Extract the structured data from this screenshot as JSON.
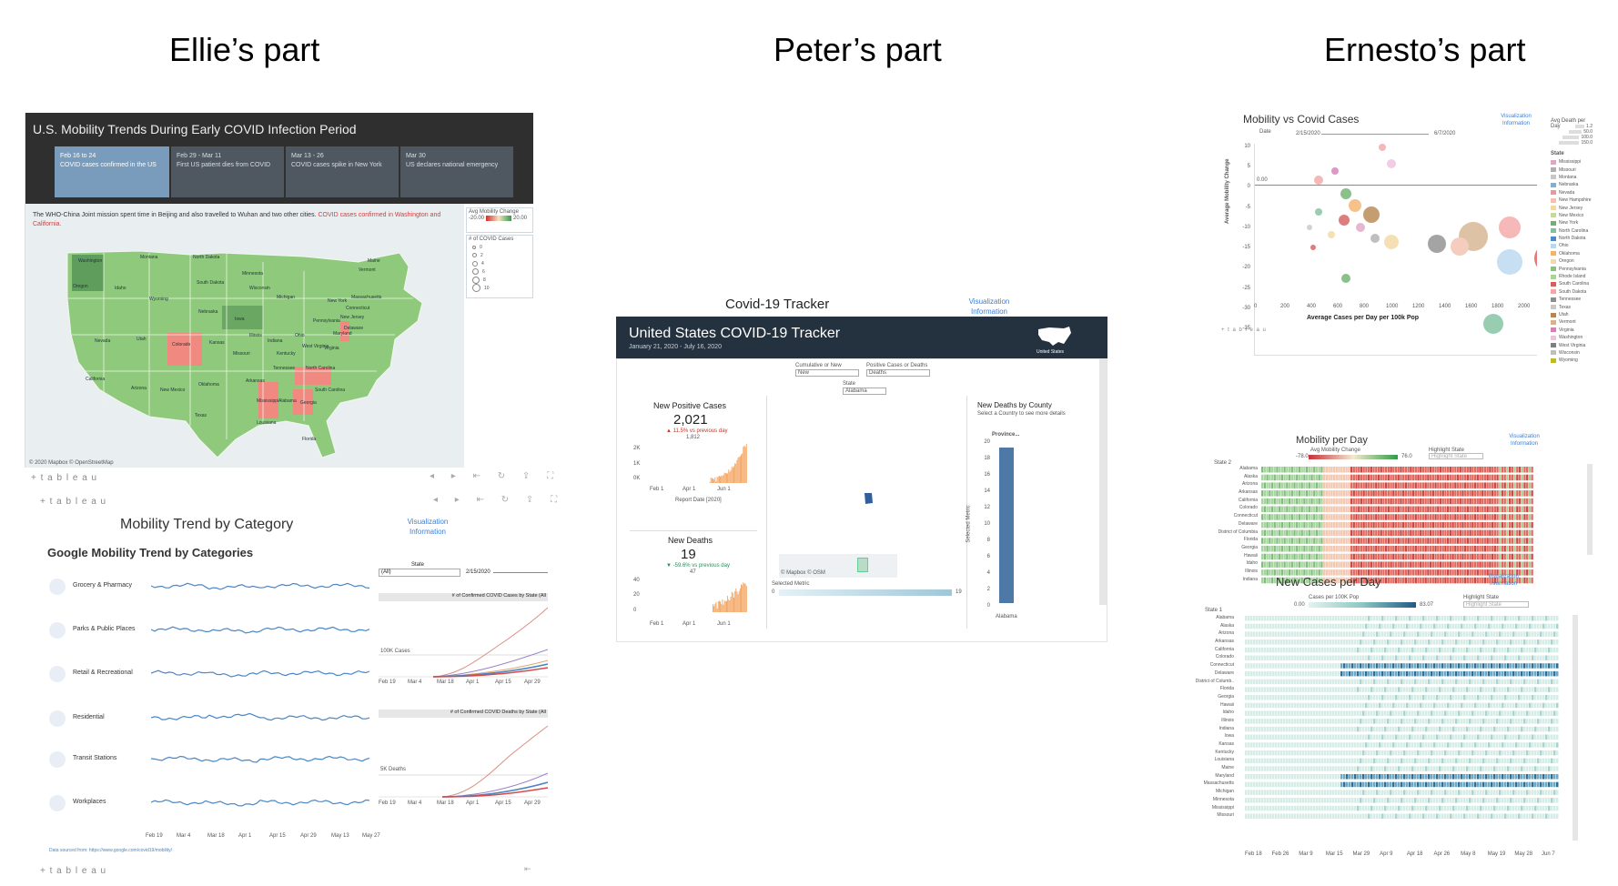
{
  "titles": {
    "ellie": "Ellie’s part",
    "peter": "Peter’s part",
    "ernesto": "Ernesto’s part"
  },
  "tableau_label": "+ t a b l e a u",
  "mobility_map": {
    "title": "U.S. Mobility Trends During Early COVID Infection Period",
    "timeline": [
      {
        "date": "Feb 16 to 24",
        "text": "COVID cases confirmed in the US"
      },
      {
        "date": "Feb 29 - Mar 11",
        "text": "First US patient dies from COVID"
      },
      {
        "date": "Mar 13 - 26",
        "text": "COVID cases spike in New York"
      },
      {
        "date": "Mar 30",
        "text": "US declares national emergency"
      }
    ],
    "caption_text": "The WHO-China Joint mission spent time in Beijing and also travelled to Wuhan and two other cities.",
    "caption_highlight": "COVID cases confirmed in Washington and California.",
    "legend_title": "Avg Mobility Change",
    "legend_min": "-20.00",
    "legend_max": "20.00",
    "cases_title": "# of COVID Cases",
    "cases_values": [
      "0",
      "2",
      "4",
      "6",
      "8",
      "10"
    ],
    "credit": "© 2020 Mapbox © OpenStreetMap",
    "states": [
      "Washington",
      "Montana",
      "North Dakota",
      "Oregon",
      "Idaho",
      "South Dakota",
      "Wyoming",
      "Minnesota",
      "Wisconsin",
      "Michigan",
      "Nebraska",
      "Iowa",
      "Nevada",
      "Utah",
      "Colorado",
      "Kansas",
      "Illinois",
      "Indiana",
      "Ohio",
      "Pennsylvania",
      "New York",
      "Vermont",
      "Massachusetts",
      "Connecticut",
      "New Jersey",
      "Delaware",
      "Maryland",
      "West Virginia",
      "Virginia",
      "Kentucky",
      "Missouri",
      "California",
      "Arizona",
      "New Mexico",
      "Oklahoma",
      "Arkansas",
      "Tennessee",
      "North Carolina",
      "South Carolina",
      "Texas",
      "Mississippi",
      "Alabama",
      "Georgia",
      "Louisiana",
      "Florida",
      "Maine"
    ]
  },
  "mobility_category": {
    "title": "Mobility Trend by Category",
    "subtitle": "Google Mobility Trend by Categories",
    "link": [
      "Visualization",
      "Information"
    ],
    "categories": [
      "Grocery & Pharmacy",
      "Parks & Public Places",
      "Retail & Recreational",
      "Residential",
      "Transit Stations",
      "Workplaces"
    ],
    "x_ticks": [
      "Feb 19",
      "Mar 4",
      "Mar 18",
      "Apr 1",
      "Apr 15",
      "Apr 29",
      "May 13",
      "May 27"
    ],
    "source_note": "Data sourced from: https://www.google.com/covid19/mobility/",
    "state_label": "State",
    "state_value": "(All)",
    "date_value": "2/15/2020",
    "cases_chart_title": "# of Confirmed COVID Cases by State (All",
    "cases_ref": "100K Cases",
    "deaths_chart_title": "# of Confirmed COVID Deaths by State (All",
    "deaths_ref": "5K Deaths",
    "side_ticks": [
      "Feb 19",
      "Mar 4",
      "Mar 18",
      "Apr 1",
      "Apr 15",
      "Apr 29"
    ]
  },
  "tracker": {
    "heading": "Covid-19 Tracker",
    "link": [
      "Visualization",
      "Information"
    ],
    "title": "United States COVID-19 Tracker",
    "subtitle": "January 21, 2020 - July 16, 2020",
    "country": "United States",
    "filter1_label": "Cumulative or New",
    "filter1_value": "New",
    "filter2_label": "Positive Cases or Deaths",
    "filter2_value": "Deaths",
    "state_label": "State",
    "state_value": "Alabama",
    "positive_title": "New Positive Cases",
    "positive_value": "2,021",
    "positive_delta": "▲ 11.5% vs previous day",
    "positive_prev": "1,812",
    "positive_yticks": [
      "2K",
      "1K",
      "0K"
    ],
    "x_ticks": [
      "Feb 1",
      "Apr 1",
      "Jun 1"
    ],
    "report_label": "Report Date [2020]",
    "deaths_title": "New Deaths",
    "deaths_value": "19",
    "deaths_delta": "▼ -59.6% vs previous day",
    "deaths_prev": "47",
    "deaths_yticks": [
      "40",
      "20",
      "0"
    ],
    "county_title": "New Deaths by County",
    "county_sub": "Select a Country to see more details",
    "province_label": "Province...",
    "county_yticks": [
      "20",
      "18",
      "16",
      "14",
      "12",
      "10",
      "8",
      "6",
      "4",
      "2",
      "0"
    ],
    "selected_metric_axis": "Selected Metric",
    "county_bar_label": "Alabama",
    "county_value": 19,
    "selected_metric_label": "Selected Metric",
    "selected_min": "0",
    "selected_max": "19",
    "map_credit": "© Mapbox © OSM"
  },
  "scatter": {
    "title": "Mobility vs Covid Cases",
    "link": [
      "Visualization",
      "Information"
    ],
    "date_label": "Date",
    "date_start": "2/15/2020",
    "date_end": "6/7/2020",
    "size_legend_title": "Avg Death per Day",
    "size_values": [
      "1.2",
      "50.0",
      "100.0",
      "150.0"
    ],
    "ylabel": "Average Mobility Change",
    "xlabel": "Average Cases per Day  per 100k Pop",
    "yticks": [
      "10",
      "5",
      "0",
      "-5",
      "-10",
      "-15",
      "-20",
      "-25",
      "-30",
      "-35"
    ],
    "xticks": [
      "0",
      "200",
      "400",
      "600",
      "800",
      "1000",
      "1200",
      "1400",
      "1600",
      "1800",
      "2000"
    ],
    "state_legend_title": "State",
    "ref_label": "0.00",
    "states": [
      "Mississippi",
      "Missouri",
      "Montana",
      "Nebraska",
      "Nevada",
      "New Hampshire",
      "New Jersey",
      "New Mexico",
      "New York",
      "North Carolina",
      "North Dakota",
      "Ohio",
      "Oklahoma",
      "Oregon",
      "Pennsylvania",
      "Rhode Island",
      "South Carolina",
      "South Dakota",
      "Tennessee",
      "Texas",
      "Utah",
      "Vermont",
      "Virginia",
      "Washington",
      "West Virginia",
      "Wisconsin",
      "Wyoming"
    ],
    "state_colors": [
      "#e0a7c4",
      "#b0b0b0",
      "#c7c7c7",
      "#7db0d8",
      "#e89a9a",
      "#f2c1b0",
      "#f2d9a0",
      "#c6d89c",
      "#6db26d",
      "#7fc1a0",
      "#4f8ac2",
      "#b8d8f0",
      "#f3b36e",
      "#f7d6a8",
      "#88c477",
      "#a9d68e",
      "#d65d5d",
      "#f4a6a6",
      "#8e8e8e",
      "#c9c9c9",
      "#b6874e",
      "#d6b38f",
      "#d87fb7",
      "#f0c0dc",
      "#7f7f7f",
      "#bfbfbf",
      "#bcbd22"
    ]
  },
  "heatmap1": {
    "title": "Mobility per Day",
    "link": [
      "Visualization",
      "Information"
    ],
    "legend_title": "Avg Mobility Change",
    "legend_min": "-78.0",
    "legend_max": "76.0",
    "highlight_label": "Highlight State",
    "highlight_placeholder": "Highlight State",
    "state_label": "State 2",
    "states": [
      "Alabama",
      "Alaska",
      "Arizona",
      "Arkansas",
      "California",
      "Colorado",
      "Connecticut",
      "Delaware",
      "District of Columbia",
      "Florida",
      "Georgia",
      "Hawaii",
      "Idaho",
      "Illinois",
      "Indiana"
    ]
  },
  "heatmap2": {
    "title": "New Cases per Day",
    "link": [
      "Visualization",
      "Information"
    ],
    "legend_title": "Cases per 100K Pop",
    "legend_min": "0.00",
    "legend_max": "83.07",
    "highlight_label": "Highlight State",
    "highlight_placeholder": "Highlight State",
    "state_label": "State 1",
    "states": [
      "Alabama",
      "Alaska",
      "Arizona",
      "Arkansas",
      "California",
      "Colorado",
      "Connecticut",
      "Delaware",
      "District of Columb..",
      "Florida",
      "Georgia",
      "Hawaii",
      "Idaho",
      "Illinois",
      "Indiana",
      "Iowa",
      "Kansas",
      "Kentucky",
      "Louisiana",
      "Maine",
      "Maryland",
      "Massachusetts",
      "Michigan",
      "Minnesota",
      "Mississippi",
      "Missouri"
    ],
    "x_ticks": [
      "Feb 18",
      "Feb 26",
      "Mar 9",
      "Mar 15",
      "Mar 29",
      "Apr 9",
      "Apr 18",
      "Apr 26",
      "May 8",
      "May 19",
      "May 28",
      "Jun 7"
    ]
  }
}
